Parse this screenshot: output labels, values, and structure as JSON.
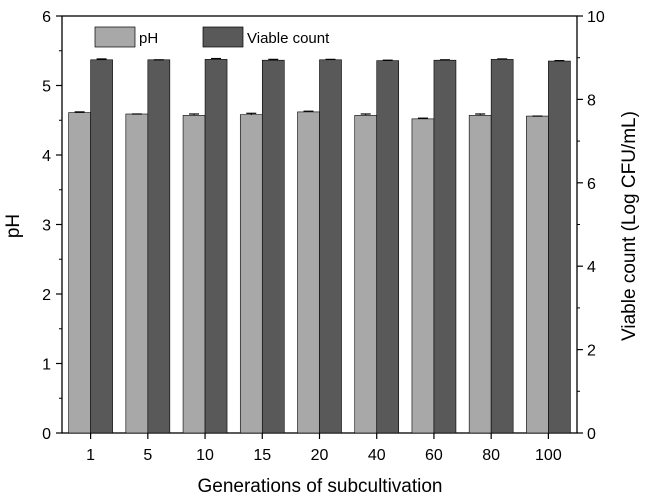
{
  "chart_data": {
    "type": "bar",
    "xlabel": "Generations of subcultivation",
    "categories": [
      "1",
      "5",
      "10",
      "15",
      "20",
      "40",
      "60",
      "80",
      "100"
    ],
    "y_left": {
      "label": "pH",
      "ylim": [
        0,
        6
      ],
      "ticks": [
        "0",
        "1",
        "2",
        "3",
        "4",
        "5",
        "6"
      ]
    },
    "y_right": {
      "label": "Viable count (Log CFU/mL)",
      "ylim": [
        0,
        10
      ],
      "ticks": [
        "0",
        "2",
        "4",
        "6",
        "8",
        "10"
      ]
    },
    "series": [
      {
        "name": "pH",
        "axis": "left",
        "color": "#a8a8a8",
        "values": [
          4.61,
          4.59,
          4.57,
          4.58,
          4.62,
          4.57,
          4.52,
          4.57,
          4.56
        ],
        "errors": [
          0.01,
          0.0,
          0.02,
          0.02,
          0.01,
          0.02,
          0.01,
          0.02,
          0.0
        ]
      },
      {
        "name": "Viable count",
        "axis": "right",
        "color": "#595959",
        "values": [
          8.95,
          8.95,
          8.96,
          8.94,
          8.95,
          8.93,
          8.94,
          8.96,
          8.92
        ],
        "errors": [
          0.02,
          0.0,
          0.02,
          0.02,
          0.01,
          0.01,
          0.01,
          0.01,
          0.01
        ]
      }
    ],
    "legend": "top-left",
    "grid": false
  }
}
